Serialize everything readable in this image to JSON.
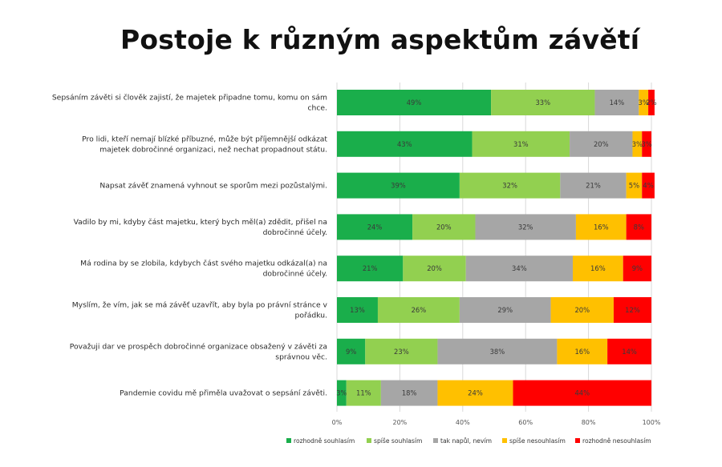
{
  "chart_data": {
    "type": "bar",
    "orientation": "horizontal",
    "stacked": "percent",
    "title": "Postoje k různým aspektům závětí",
    "categories": [
      [
        "Sepsáním závěti si člověk zajistí, že majetek připadne tomu, komu on sám",
        "chce."
      ],
      [
        "Pro lidi, kteří nemají blízké příbuzné, může být příjemnější odkázat",
        "majetek dobročinné organizaci, než nechat propadnout státu."
      ],
      [
        "Napsat závěť znamená vyhnout se sporům mezi pozůstalými."
      ],
      [
        "Vadilo by mi, kdyby část majetku, který bych měl(a) zdědit, přišel na",
        "dobročinné účely."
      ],
      [
        "Má rodina by se zlobila, kdybych část svého majetku odkázal(a) na",
        "dobročinné účely."
      ],
      [
        "Myslím, že vím, jak se má závěť uzavřít, aby byla po právní stránce v",
        "pořádku."
      ],
      [
        "Považuji dar ve prospěch dobročinné organizace obsažený v závěti za",
        "správnou věc."
      ],
      [
        "Pandemie covidu mě přiměla uvažovat o sepsání závěti."
      ]
    ],
    "series": [
      {
        "name": "rozhodně souhlasím",
        "color": "#1aae4b",
        "values": [
          49,
          43,
          39,
          24,
          21,
          13,
          9,
          3
        ]
      },
      {
        "name": "spíše souhlasím",
        "color": "#92d050",
        "values": [
          33,
          31,
          32,
          20,
          20,
          26,
          23,
          11
        ]
      },
      {
        "name": "tak napůl, nevím",
        "color": "#a6a6a6",
        "values": [
          14,
          20,
          21,
          32,
          34,
          29,
          38,
          18
        ]
      },
      {
        "name": "spíše nesouhlasím",
        "color": "#ffc000",
        "values": [
          3,
          3,
          5,
          16,
          16,
          20,
          16,
          24
        ]
      },
      {
        "name": "rozhodně nesouhlasím",
        "color": "#ff0000",
        "values": [
          2,
          3,
          4,
          8,
          9,
          12,
          14,
          44
        ]
      }
    ],
    "xticks": [
      "0%",
      "20%",
      "40%",
      "60%",
      "80%",
      "100%"
    ],
    "xlim": [
      0,
      100
    ],
    "grid": true,
    "legend": "bottom"
  }
}
